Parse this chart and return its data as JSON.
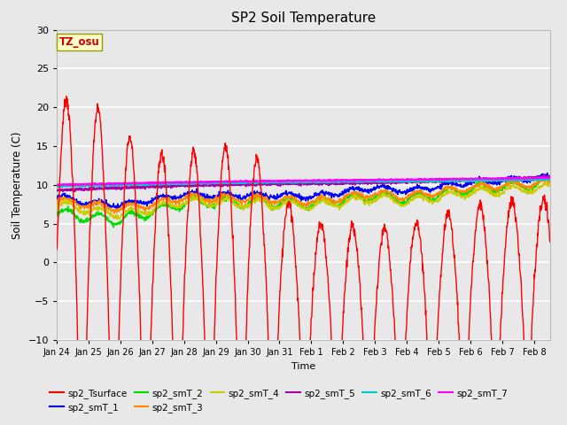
{
  "title": "SP2 Soil Temperature",
  "ylabel": "Soil Temperature (C)",
  "xlabel": "Time",
  "ylim": [
    -10,
    30
  ],
  "background_color": "#e8e8e8",
  "plot_bg_color": "#e8e8e8",
  "grid_color": "#ffffff",
  "tz_label": "TZ_osu",
  "tz_box_color": "#ffffcc",
  "tz_text_color": "#cc0000",
  "series_colors": {
    "sp2_Tsurface": "#ff0000",
    "sp2_smT_1": "#0000ff",
    "sp2_smT_2": "#00dd00",
    "sp2_smT_3": "#ff8800",
    "sp2_smT_4": "#cccc00",
    "sp2_smT_5": "#aa00aa",
    "sp2_smT_6": "#00cccc",
    "sp2_smT_7": "#ff00ff"
  },
  "tick_labels": [
    "Jan 24",
    "Jan 25",
    "Jan 26",
    "Jan 27",
    "Jan 28",
    "Jan 29",
    "Jan 30",
    "Jan 31",
    "Feb 1",
    "Feb 2",
    "Feb 3",
    "Feb 4",
    "Feb 5",
    "Feb 6",
    "Feb 7",
    "Feb 8"
  ],
  "legend_order": [
    "sp2_Tsurface",
    "sp2_smT_1",
    "sp2_smT_2",
    "sp2_smT_3",
    "sp2_smT_4",
    "sp2_smT_5",
    "sp2_smT_6",
    "sp2_smT_7"
  ]
}
